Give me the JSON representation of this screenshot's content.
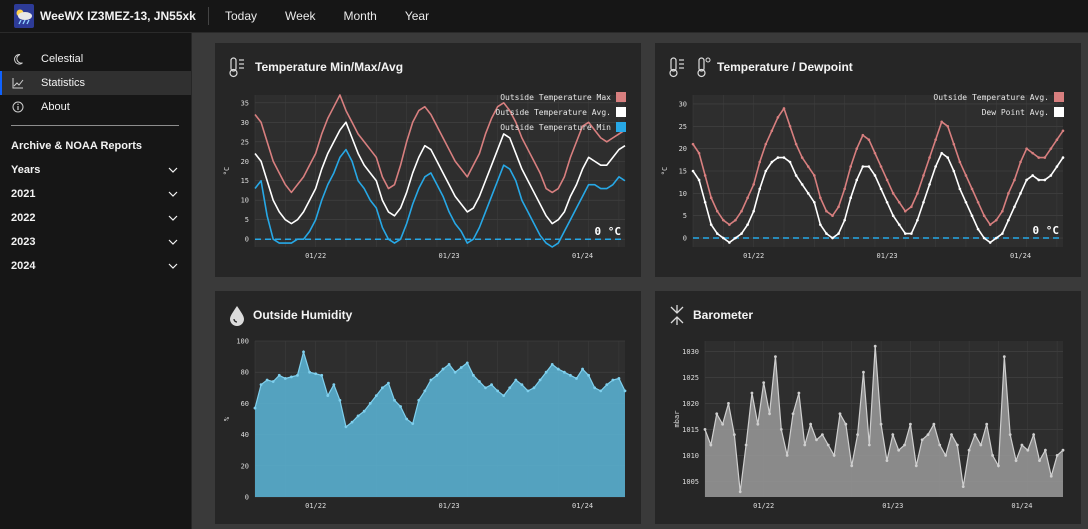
{
  "app": {
    "title": "WeeWX IZ3MEZ-13, JN55xk"
  },
  "topnav": [
    "Today",
    "Week",
    "Month",
    "Year"
  ],
  "sidebar": {
    "items": [
      {
        "label": "Celestial",
        "icon": "moon-icon"
      },
      {
        "label": "Statistics",
        "icon": "chart-icon",
        "active": true
      },
      {
        "label": "About",
        "icon": "info-icon"
      }
    ],
    "archive_heading": "Archive & NOAA Reports",
    "groups": [
      "Years",
      "2021",
      "2022",
      "2023",
      "2024"
    ]
  },
  "colors": {
    "temp_max": "#d87f7f",
    "temp_avg": "#ffffff",
    "temp_min": "#27a8e6",
    "dewpoint": "#ffffff",
    "humidity_fill": "#5bb6d8",
    "humidity_line": "#7fd0ee",
    "barometer_fill": "#9a9a9a",
    "barometer_line": "#cfcfcf",
    "zero_line": "#27a8e6"
  },
  "chart_data": [
    {
      "id": "temp",
      "type": "line",
      "title": "Temperature Min/Max/Avg",
      "ylabel": "°C",
      "ylim": [
        -2,
        37
      ],
      "yticks": [
        0,
        5,
        10,
        15,
        20,
        25,
        30,
        35
      ],
      "xticks": [
        {
          "x": 10,
          "label": "01/22"
        },
        {
          "x": 32,
          "label": "01/23"
        },
        {
          "x": 54,
          "label": "01/24"
        }
      ],
      "xlim": [
        0,
        61
      ],
      "grid": true,
      "legend_position": "top-right",
      "zero_annotation": "0 °C",
      "series": [
        {
          "name": "Outside Temperature Max",
          "color_key": "temp_max",
          "values": [
            32,
            30,
            25,
            20,
            17,
            14,
            12,
            14,
            16,
            19,
            22,
            27,
            31,
            34,
            37,
            33,
            30,
            27,
            25,
            23,
            21,
            16,
            13,
            14,
            19,
            25,
            30,
            33,
            34,
            32,
            29,
            26,
            23,
            20,
            18,
            16,
            19,
            22,
            27,
            31,
            34,
            35,
            33,
            30,
            26,
            23,
            20,
            17,
            13,
            12,
            13,
            16,
            21,
            25,
            29,
            30,
            28,
            26,
            25,
            26,
            27,
            28
          ]
        },
        {
          "name": "Outside Temperature Avg.",
          "color_key": "temp_avg",
          "values": [
            22,
            20,
            15,
            10,
            7,
            5,
            4,
            5,
            7,
            10,
            13,
            18,
            22,
            25,
            28,
            30,
            26,
            22,
            19,
            17,
            15,
            10,
            7,
            6,
            8,
            12,
            17,
            21,
            24,
            23,
            20,
            17,
            14,
            11,
            9,
            7,
            8,
            11,
            15,
            19,
            23,
            27,
            26,
            22,
            18,
            15,
            12,
            9,
            6,
            4,
            5,
            7,
            11,
            14,
            18,
            21,
            20,
            19,
            19,
            21,
            23,
            24
          ]
        },
        {
          "name": "Outside Temperature Min",
          "color_key": "temp_min",
          "values": [
            13,
            15,
            6,
            0,
            -1,
            -1,
            -1,
            0,
            0,
            2,
            5,
            10,
            14,
            17,
            21,
            23,
            20,
            15,
            13,
            10,
            8,
            3,
            0,
            -1,
            0,
            4,
            9,
            13,
            16,
            17,
            14,
            11,
            7,
            4,
            2,
            -1,
            0,
            3,
            7,
            11,
            15,
            19,
            18,
            15,
            10,
            7,
            4,
            1,
            -1,
            -2,
            -1,
            2,
            5,
            8,
            11,
            14,
            14,
            13,
            13,
            14,
            16,
            15
          ]
        }
      ]
    },
    {
      "id": "dew",
      "type": "line",
      "title": "Temperature / Dewpoint",
      "ylabel": "°C",
      "ylim": [
        -2,
        32
      ],
      "yticks": [
        0,
        5,
        10,
        15,
        20,
        25,
        30
      ],
      "xticks": [
        {
          "x": 10,
          "label": "01/22"
        },
        {
          "x": 32,
          "label": "01/23"
        },
        {
          "x": 54,
          "label": "01/24"
        }
      ],
      "xlim": [
        0,
        61
      ],
      "grid": true,
      "legend_position": "top-right",
      "zero_annotation": "0 °C",
      "series": [
        {
          "name": "Outside Temperature Avg.",
          "color_key": "temp_max",
          "values": [
            21,
            19,
            14,
            9,
            6,
            4,
            3,
            4,
            6,
            9,
            12,
            17,
            21,
            24,
            27,
            29,
            25,
            21,
            18,
            16,
            14,
            9,
            6,
            5,
            7,
            11,
            16,
            20,
            23,
            22,
            19,
            16,
            13,
            10,
            8,
            6,
            7,
            10,
            14,
            18,
            22,
            26,
            25,
            21,
            17,
            14,
            11,
            8,
            5,
            3,
            4,
            6,
            10,
            13,
            17,
            20,
            19,
            18,
            18,
            20,
            22,
            24
          ]
        },
        {
          "name": "Dew Point Avg.",
          "color_key": "dewpoint",
          "values": [
            15,
            13,
            8,
            3,
            1,
            0,
            -1,
            0,
            1,
            3,
            6,
            11,
            15,
            17,
            18,
            18,
            17,
            14,
            12,
            10,
            8,
            3,
            1,
            0,
            1,
            4,
            9,
            13,
            16,
            16,
            14,
            11,
            8,
            5,
            3,
            1,
            1,
            4,
            8,
            12,
            16,
            19,
            18,
            15,
            11,
            8,
            5,
            2,
            0,
            -1,
            0,
            1,
            4,
            7,
            10,
            13,
            14,
            13,
            13,
            14,
            16,
            18
          ]
        }
      ]
    },
    {
      "id": "hum",
      "type": "area",
      "title": "Outside Humidity",
      "ylabel": "%",
      "ylim": [
        0,
        100
      ],
      "yticks": [
        0,
        20,
        40,
        60,
        80,
        100
      ],
      "xticks": [
        {
          "x": 10,
          "label": "01/22"
        },
        {
          "x": 32,
          "label": "01/23"
        },
        {
          "x": 54,
          "label": "01/24"
        }
      ],
      "xlim": [
        0,
        61
      ],
      "grid": true,
      "series": [
        {
          "name": "Outside Humidity",
          "color_key": "humidity_fill",
          "values": [
            57,
            72,
            75,
            74,
            78,
            76,
            77,
            78,
            93,
            80,
            79,
            78,
            65,
            72,
            62,
            45,
            48,
            52,
            55,
            60,
            65,
            70,
            73,
            62,
            58,
            50,
            47,
            62,
            68,
            75,
            78,
            82,
            85,
            80,
            83,
            86,
            78,
            74,
            70,
            72,
            68,
            65,
            70,
            75,
            72,
            68,
            70,
            75,
            80,
            85,
            82,
            80,
            78,
            76,
            82,
            78,
            70,
            68,
            72,
            75,
            76,
            68
          ]
        }
      ]
    },
    {
      "id": "baro",
      "type": "area",
      "title": "Barometer",
      "ylabel": "mbar",
      "ylim": [
        1002,
        1032
      ],
      "yticks": [
        1005,
        1010,
        1015,
        1020,
        1025,
        1030
      ],
      "xticks": [
        {
          "x": 10,
          "label": "01/22"
        },
        {
          "x": 32,
          "label": "01/23"
        },
        {
          "x": 54,
          "label": "01/24"
        }
      ],
      "xlim": [
        0,
        61
      ],
      "grid": true,
      "series": [
        {
          "name": "Barometer",
          "color_key": "barometer_fill",
          "values": [
            1015,
            1012,
            1018,
            1016,
            1020,
            1014,
            1003,
            1012,
            1022,
            1016,
            1024,
            1018,
            1029,
            1015,
            1010,
            1018,
            1022,
            1012,
            1016,
            1013,
            1014,
            1012,
            1010,
            1018,
            1016,
            1008,
            1014,
            1026,
            1012,
            1031,
            1016,
            1009,
            1014,
            1011,
            1012,
            1016,
            1008,
            1013,
            1014,
            1016,
            1012,
            1010,
            1014,
            1012,
            1004,
            1011,
            1014,
            1012,
            1016,
            1010,
            1008,
            1029,
            1014,
            1009,
            1012,
            1011,
            1014,
            1009,
            1011,
            1006,
            1010,
            1011
          ]
        }
      ]
    }
  ]
}
